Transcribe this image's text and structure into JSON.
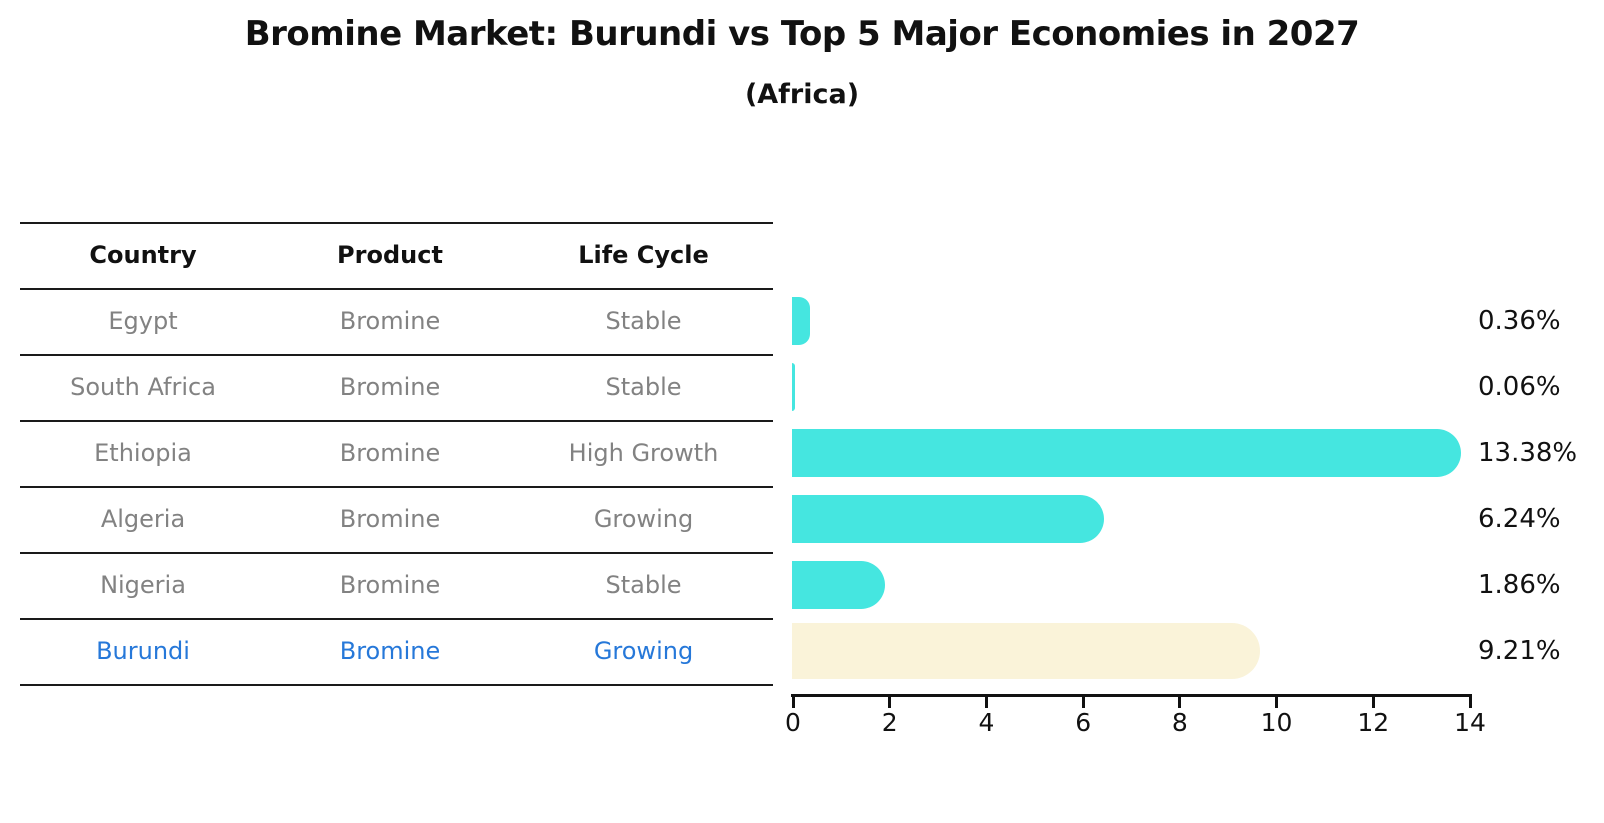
{
  "title": "Bromine Market: Burundi vs Top 5 Major Economies in 2027",
  "subtitle": "(Africa)",
  "table": {
    "columns": [
      "Country",
      "Product",
      "Life Cycle"
    ],
    "rows": [
      {
        "country": "Egypt",
        "product": "Bromine",
        "life_cycle": "Stable",
        "highlight": false
      },
      {
        "country": "South Africa",
        "product": "Bromine",
        "life_cycle": "Stable",
        "highlight": false
      },
      {
        "country": "Ethiopia",
        "product": "Bromine",
        "life_cycle": "High Growth",
        "highlight": false
      },
      {
        "country": "Algeria",
        "product": "Bromine",
        "life_cycle": "Growing",
        "highlight": false
      },
      {
        "country": "Nigeria",
        "product": "Bromine",
        "life_cycle": "Stable",
        "highlight": false
      },
      {
        "country": "Burundi",
        "product": "Bromine",
        "life_cycle": "Growing",
        "highlight": true
      }
    ]
  },
  "chart_data": {
    "type": "bar",
    "orientation": "horizontal",
    "title": "Bromine Market: Burundi vs Top 5 Major Economies in 2027",
    "subtitle": "(Africa)",
    "categories": [
      "Egypt",
      "South Africa",
      "Ethiopia",
      "Algeria",
      "Nigeria",
      "Burundi"
    ],
    "values": [
      0.36,
      0.06,
      13.38,
      6.24,
      1.86,
      9.21
    ],
    "value_labels": [
      "0.36%",
      "0.06%",
      "13.38%",
      "6.24%",
      "1.86%",
      "9.21%"
    ],
    "highlight_category": "Burundi",
    "xlabel": "",
    "ylabel": "",
    "xlim": [
      0,
      14
    ],
    "x_ticks": [
      0,
      2,
      4,
      6,
      8,
      10,
      12,
      14
    ],
    "grid": false,
    "legend": false
  },
  "colors": {
    "bar_default": "#45E6E0",
    "bar_highlight": "#1E7CE8",
    "bar_highlight_border": "#0A5FD3",
    "bar_highlight_glow": "#FAF3D9",
    "table_row_text": "#828282",
    "table_highlight_text": "#2678D9",
    "header_text": "#111111",
    "axis": "#111111"
  }
}
